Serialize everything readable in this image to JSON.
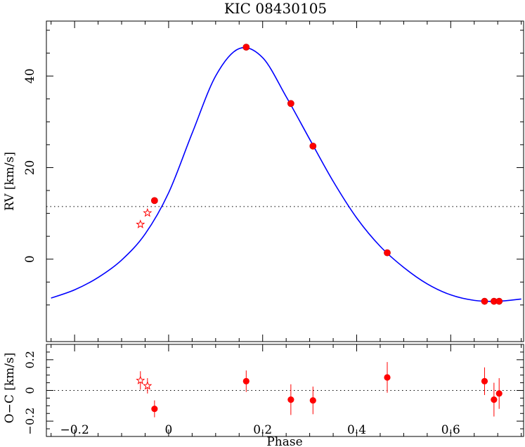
{
  "chart_data": {
    "type": "scatter",
    "title": "KIC 08430105",
    "xlabel": "Phase",
    "xlim": [
      -0.26,
      0.755
    ],
    "xticks": [
      -0.2,
      0,
      0.2,
      0.4,
      0.6
    ],
    "top_panel": {
      "ylabel": "RV [km/s]",
      "ylim": [
        -18,
        52
      ],
      "yticks": [
        0,
        20,
        40
      ],
      "systemic_velocity": 11.5,
      "model_curve": {
        "color": "#0000ff",
        "x": [
          -0.25,
          -0.2,
          -0.15,
          -0.1,
          -0.05,
          0.0,
          0.05,
          0.1,
          0.15,
          0.2,
          0.25,
          0.3,
          0.35,
          0.4,
          0.45,
          0.5,
          0.55,
          0.6,
          0.65,
          0.7,
          0.75
        ],
        "y": [
          -8.5,
          -6.7,
          -4.0,
          -0.2,
          5.5,
          14.5,
          27.5,
          40.0,
          46.0,
          44.0,
          35.5,
          26.2,
          17.0,
          9.0,
          2.8,
          -1.8,
          -5.4,
          -7.8,
          -9.0,
          -9.2,
          -8.7
        ]
      },
      "series": [
        {
          "marker": "circle",
          "color": "#ff0000",
          "x": [
            -0.03,
            0.165,
            0.26,
            0.307,
            0.465,
            0.672,
            0.692,
            0.703
          ],
          "y": [
            12.8,
            46.3,
            34.0,
            24.7,
            1.4,
            -9.2,
            -9.2,
            -9.2
          ]
        },
        {
          "marker": "star",
          "color": "#ff0000",
          "x": [
            -0.06,
            -0.045
          ],
          "y": [
            7.6,
            10.1
          ]
        }
      ]
    },
    "bottom_panel": {
      "ylabel": "O−C [km/s]",
      "ylim": [
        -0.3,
        0.3
      ],
      "yticks": [
        -0.2,
        0,
        0.2
      ],
      "series": [
        {
          "marker": "circle",
          "color": "#ff0000",
          "x": [
            -0.03,
            0.165,
            0.26,
            0.307,
            0.465,
            0.672,
            0.692,
            0.703
          ],
          "y": [
            -0.12,
            0.06,
            -0.06,
            -0.065,
            0.085,
            0.06,
            -0.06,
            -0.02
          ],
          "err": [
            0.055,
            0.07,
            0.1,
            0.09,
            0.1,
            0.09,
            0.11,
            0.1
          ]
        },
        {
          "marker": "star",
          "color": "#ff0000",
          "x": [
            -0.06,
            -0.045
          ],
          "y": [
            0.065,
            0.03
          ],
          "err": [
            0.06,
            0.05
          ]
        }
      ]
    }
  }
}
